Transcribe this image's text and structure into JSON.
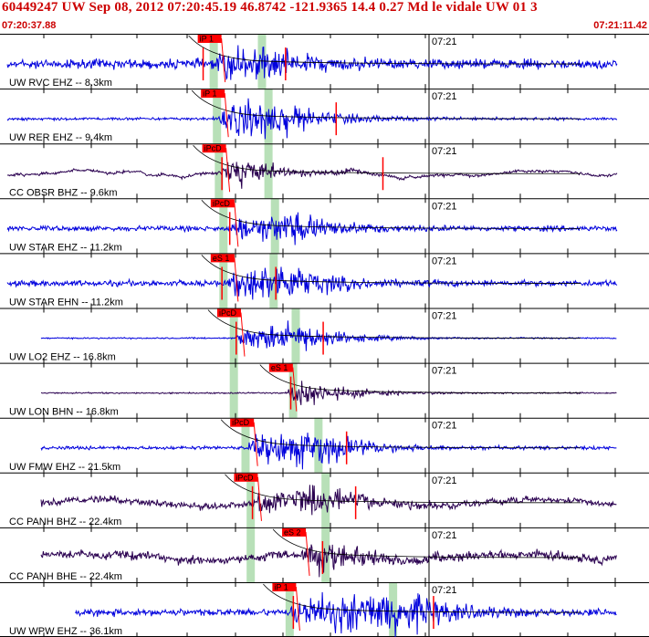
{
  "header": {
    "title": "60449247 UW Sep 08, 2012 07:20:45.19   46.8742 -121.9365 14.4 0.27 Md le vidale UW 01   3",
    "start_time": "07:20:37.88",
    "end_time": "07:21:11.42"
  },
  "colors": {
    "header_text": "#cc0000",
    "trace_blue": "#0000dd",
    "trace_purple": "#2a0050",
    "pick_red": "#ff0000",
    "window_green": "#b8e0b8",
    "grid": "#000000"
  },
  "traces": [
    {
      "label": "UW RVC EHZ -- 8.3km",
      "pick": "iP 1",
      "minute": "07:21",
      "color": "blue",
      "trace_start": 0.0,
      "trace_end": 1.0,
      "onset": 0.33,
      "peak": 0.4,
      "amp": 14,
      "noise": 4,
      "broadband": false,
      "green": [
        0.323,
        0.41
      ],
      "red_marks": [
        0.313,
        0.44
      ]
    },
    {
      "label": "UW RER EHZ -- 9.4km",
      "pick": "iP 1",
      "minute": "07:21",
      "color": "blue",
      "trace_start": 0.0,
      "trace_end": 1.0,
      "onset": 0.335,
      "peak": 0.42,
      "amp": 18,
      "noise": 1.2,
      "broadband": false,
      "green": [
        0.328,
        0.42
      ],
      "red_marks": [
        0.518
      ]
    },
    {
      "label": "CC OBSR BHZ -- 9.6km",
      "pick": "iPcD",
      "minute": "07:21",
      "color": "purple",
      "trace_start": 0.0,
      "trace_end": 1.0,
      "onset": 0.337,
      "peak": 0.37,
      "amp": 18,
      "noise": 1.5,
      "broadband": true,
      "green": [
        0.331,
        0.42
      ],
      "red_marks": [
        0.342,
        0.59
      ]
    },
    {
      "label": "UW STAR EHZ -- 11.2km",
      "pick": "iPcD",
      "minute": "07:21",
      "color": "blue",
      "trace_start": 0.0,
      "trace_end": 1.0,
      "onset": 0.35,
      "peak": 0.46,
      "amp": 12,
      "noise": 2.2,
      "broadband": false,
      "green": [
        0.338,
        0.43
      ],
      "red_marks": [
        0.354
      ]
    },
    {
      "label": "UW STAR EHN -- 11.2km",
      "pick": "eS 1",
      "minute": "07:21",
      "color": "blue",
      "trace_start": 0.0,
      "trace_end": 1.0,
      "onset": 0.35,
      "peak": 0.44,
      "amp": 16,
      "noise": 2.5,
      "broadband": false,
      "green": [
        0.338,
        0.428
      ],
      "red_marks": [
        0.342,
        0.425
      ]
    },
    {
      "label": "UW LO2 EHZ -- 16.8km",
      "pick": "iPcD",
      "minute": "07:21",
      "color": "blue",
      "trace_start": 0.052,
      "trace_end": 1.0,
      "onset": 0.36,
      "peak": 0.46,
      "amp": 13,
      "noise": 0.6,
      "broadband": false,
      "green": [
        0.354,
        0.462
      ],
      "red_marks": [
        0.364,
        0.498
      ]
    },
    {
      "label": "UW LON BHN -- 16.8km",
      "pick": "eS 1",
      "minute": "07:21",
      "color": "purple",
      "trace_start": 0.052,
      "trace_end": 1.0,
      "onset": 0.44,
      "peak": 0.46,
      "amp": 13,
      "noise": 0.6,
      "broadband": false,
      "green": [
        0.354,
        0.458
      ],
      "red_marks": [
        0.448
      ]
    },
    {
      "label": "UW FMW EHZ -- 21.5km",
      "pick": "iPcD",
      "minute": "07:21",
      "color": "blue",
      "trace_start": 0.052,
      "trace_end": 1.0,
      "onset": 0.38,
      "peak": 0.49,
      "amp": 16,
      "noise": 1.5,
      "broadband": false,
      "green": [
        0.372,
        0.497
      ],
      "red_marks": [
        0.534
      ]
    },
    {
      "label": "CC PANH BHZ -- 22.4km",
      "pick": "iPcD",
      "minute": "07:21",
      "color": "purple",
      "trace_start": 0.052,
      "trace_end": 1.0,
      "onset": 0.386,
      "peak": 0.5,
      "amp": 14,
      "noise": 4,
      "broadband": true,
      "green": [
        0.38,
        0.508
      ],
      "red_marks": [
        0.389,
        0.548
      ]
    },
    {
      "label": "CC PANH BHE -- 22.4km",
      "pick": "eS 2",
      "minute": "07:21",
      "color": "purple",
      "trace_start": 0.052,
      "trace_end": 1.0,
      "onset": 0.46,
      "peak": 0.5,
      "amp": 18,
      "noise": 5,
      "broadband": true,
      "green": [
        0.38,
        0.508
      ],
      "red_marks": [
        0.497
      ]
    },
    {
      "label": "UW WPW EHZ -- 36.1km",
      "pick": "iP 1",
      "minute": "07:21",
      "color": "blue",
      "trace_start": 0.105,
      "trace_end": 1.0,
      "onset": 0.445,
      "peak": 0.62,
      "amp": 18,
      "noise": 3,
      "broadband": false,
      "green": [
        0.44,
        0.612
      ],
      "red_marks": [
        0.452,
        0.668
      ]
    }
  ]
}
